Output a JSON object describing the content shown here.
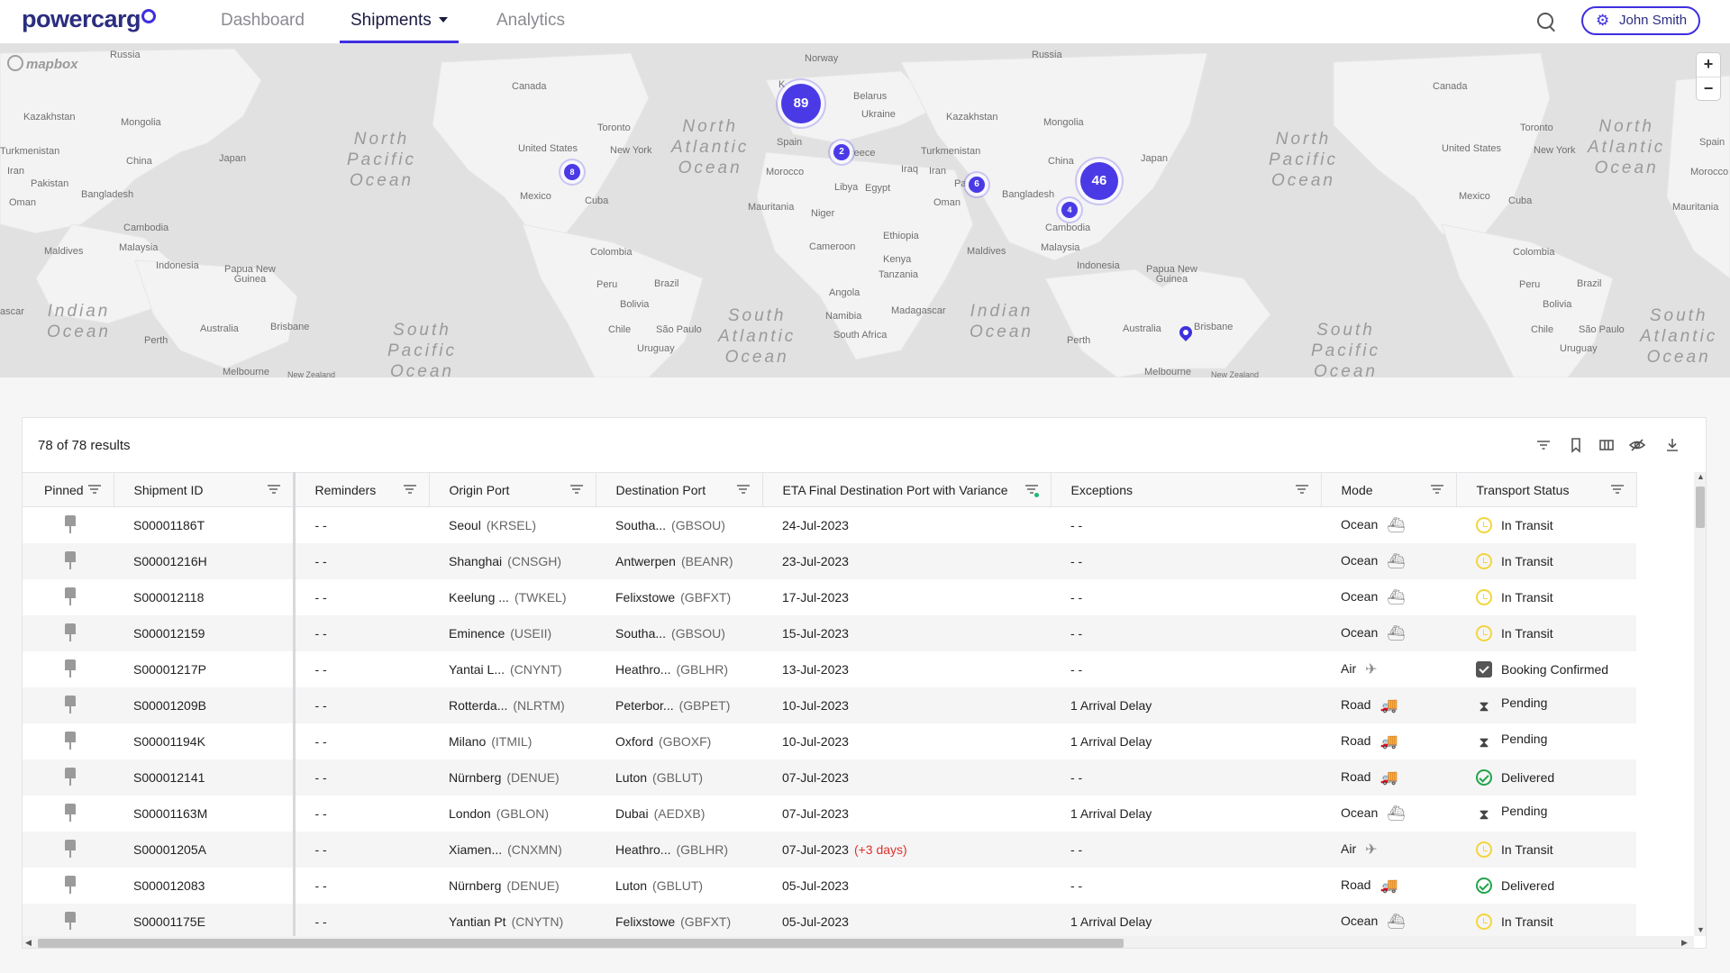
{
  "app": {
    "logo_text": "powercarg",
    "nav": [
      {
        "label": "Dashboard"
      },
      {
        "label": "Shipments"
      },
      {
        "label": "Analytics"
      }
    ],
    "user_name": "John Smith"
  },
  "map": {
    "attribution": "mapbox",
    "zoom_in": "+",
    "zoom_out": "−",
    "labels": {
      "russia1": "Russia",
      "russia2": "Russia",
      "norway": "Norway",
      "canada1": "Canada",
      "canada2": "Canada",
      "kazakhstan1": "Kazakhstan",
      "kazakhstan2": "Kazakhstan",
      "mongolia1": "Mongolia",
      "mongolia2": "Mongolia",
      "turkmenistan1": "Turkmenistan",
      "turkmenistan2": "Turkmenistan",
      "china1": "China",
      "china2": "China",
      "japan1": "Japan",
      "japan2": "Japan",
      "iran1": "Iran",
      "iran2": "Iran",
      "pakistan": "Pakistan",
      "pak2": "Pa",
      "oman1": "Oman",
      "oman2": "Oman",
      "bangladesh1": "Bangladesh",
      "bangladesh2": "Bangladesh",
      "cambodia1": "Cambodia",
      "cambodia2": "Cambodia",
      "maldives1": "Maldives",
      "maldives2": "Maldives",
      "malaysia1": "Malaysia",
      "malaysia2": "Malaysia",
      "indonesia1": "Indonesia",
      "indonesia2": "Indonesia",
      "png1": "Papua New\nGuinea",
      "png2": "Papua New\nGuinea",
      "australia1": "Australia",
      "australia2": "Australia",
      "perth1": "Perth",
      "perth2": "Perth",
      "brisbane1": "Brisbane",
      "brisbane2": "Brisbane",
      "melbourne1": "Melbourne",
      "melbourne2": "Melbourne",
      "nz1": "New Zealand",
      "nz2": "New Zealand",
      "us1": "United States",
      "us2": "United States",
      "toronto1": "Toronto",
      "toronto2": "Toronto",
      "ny1": "New York",
      "ny2": "New York",
      "mexico1": "Mexico",
      "mexico2": "Mexico",
      "cuba1": "Cuba",
      "cuba2": "Cuba",
      "colombia1": "Colombia",
      "colombia2": "Colombia",
      "peru1": "Peru",
      "peru2": "Peru",
      "brazil1": "Brazil",
      "brazil2": "Brazil",
      "bolivia1": "Bolivia",
      "bolivia2": "Bolivia",
      "chile1": "Chile",
      "chile2": "Chile",
      "saopaulo1": "São Paulo",
      "saopaulo2": "São Paulo",
      "uruguay1": "Uruguay",
      "uruguay2": "Uruguay",
      "belarus": "Belarus",
      "ukraine": "Ukraine",
      "spain1": "Spain",
      "spain2": "Spain",
      "greece": "reece",
      "morocco1": "Morocco",
      "morocco2": "Morocco",
      "libya": "Libya",
      "egypt": "Egypt",
      "iraq": "Iraq",
      "mauritania1": "Mauritania",
      "mauritania2": "Mauritania",
      "niger": "Niger",
      "ethiopia": "Ethiopia",
      "cameroon": "Cameroon",
      "kenya": "Kenya",
      "tanzania": "Tanzania",
      "angola": "Angola",
      "namibia": "Namibia",
      "madagascar": "Madagascar",
      "southafrica": "South Africa",
      "uk": "K",
      "oscar": "ascar"
    },
    "oceans": {
      "np1": "North\nPacific\nOcean",
      "na1": "North\nAtlantic\nOcean",
      "np2": "North\nPacific\nOcean",
      "na2": "North\nAtlantic\nOcean",
      "io1": "Indian\nOcean",
      "sp1": "South\nPacific\nOcean",
      "sa1": "South\nAtlantic\nOcean",
      "io2": "Indian\nOcean",
      "sp2": "South\nPacific\nOcean",
      "sa2": "South\nAtlantic\nOcean"
    },
    "clusters": [
      {
        "count": "89"
      },
      {
        "count": "46"
      },
      {
        "count": "8"
      },
      {
        "count": "2"
      },
      {
        "count": "6"
      },
      {
        "count": "4"
      }
    ]
  },
  "table": {
    "results_text": "78 of 78 results",
    "toolbar_icons": [
      "filter-icon",
      "bookmark-icon",
      "columns-icon",
      "hide-icon",
      "download-icon"
    ],
    "columns": [
      "Pinned",
      "Shipment ID",
      "Reminders",
      "Origin Port",
      "Destination Port",
      "ETA Final Destination Port with Variance",
      "Exceptions",
      "Mode",
      "Transport Status"
    ],
    "rows": [
      {
        "id": "S00001186T",
        "reminders": "- -",
        "origin": "Seoul",
        "origin_code": "(KRSEL)",
        "dest": "Southa...",
        "dest_code": "(GBSOU)",
        "eta": "24-Jul-2023",
        "variance": "",
        "exceptions": "- -",
        "mode": "Ocean",
        "mode_icon": "ship-icon",
        "status": "In Transit",
        "status_icon": "transit"
      },
      {
        "id": "S00001216H",
        "reminders": "- -",
        "origin": "Shanghai",
        "origin_code": "(CNSGH)",
        "dest": "Antwerpen",
        "dest_code": "(BEANR)",
        "eta": "23-Jul-2023",
        "variance": "",
        "exceptions": "- -",
        "mode": "Ocean",
        "mode_icon": "ship-icon",
        "status": "In Transit",
        "status_icon": "transit"
      },
      {
        "id": "S000012118",
        "reminders": "- -",
        "origin": "Keelung ...",
        "origin_code": "(TWKEL)",
        "dest": "Felixstowe",
        "dest_code": "(GBFXT)",
        "eta": "17-Jul-2023",
        "variance": "",
        "exceptions": "- -",
        "mode": "Ocean",
        "mode_icon": "ship-icon",
        "status": "In Transit",
        "status_icon": "transit"
      },
      {
        "id": "S000012159",
        "reminders": "- -",
        "origin": "Eminence",
        "origin_code": "(USEII)",
        "dest": "Southa...",
        "dest_code": "(GBSOU)",
        "eta": "15-Jul-2023",
        "variance": "",
        "exceptions": "- -",
        "mode": "Ocean",
        "mode_icon": "ship-icon",
        "status": "In Transit",
        "status_icon": "transit"
      },
      {
        "id": "S00001217P",
        "reminders": "- -",
        "origin": "Yantai L...",
        "origin_code": "(CNYNT)",
        "dest": "Heathro...",
        "dest_code": "(GBLHR)",
        "eta": "13-Jul-2023",
        "variance": "",
        "exceptions": "- -",
        "mode": "Air",
        "mode_icon": "plane-icon",
        "status": "Booking Confirmed",
        "status_icon": "booking"
      },
      {
        "id": "S00001209B",
        "reminders": "- -",
        "origin": "Rotterda...",
        "origin_code": "(NLRTM)",
        "dest": "Peterbor...",
        "dest_code": "(GBPET)",
        "eta": "10-Jul-2023",
        "variance": "",
        "exceptions": "1 Arrival Delay",
        "mode": "Road",
        "mode_icon": "truck-icon",
        "status": "Pending",
        "status_icon": "pending"
      },
      {
        "id": "S00001194K",
        "reminders": "- -",
        "origin": "Milano",
        "origin_code": "(ITMIL)",
        "dest": "Oxford",
        "dest_code": "(GBOXF)",
        "eta": "10-Jul-2023",
        "variance": "",
        "exceptions": "1 Arrival Delay",
        "mode": "Road",
        "mode_icon": "truck-icon",
        "status": "Pending",
        "status_icon": "pending"
      },
      {
        "id": "S000012141",
        "reminders": "- -",
        "origin": "Nürnberg",
        "origin_code": "(DENUE)",
        "dest": "Luton",
        "dest_code": "(GBLUT)",
        "eta": "07-Jul-2023",
        "variance": "",
        "exceptions": "- -",
        "mode": "Road",
        "mode_icon": "truck-icon",
        "status": "Delivered",
        "status_icon": "delivered"
      },
      {
        "id": "S00001163M",
        "reminders": "- -",
        "origin": "London",
        "origin_code": "(GBLON)",
        "dest": "Dubai",
        "dest_code": "(AEDXB)",
        "eta": "07-Jul-2023",
        "variance": "",
        "exceptions": "1 Arrival Delay",
        "mode": "Ocean",
        "mode_icon": "ship-icon",
        "status": "Pending",
        "status_icon": "pending"
      },
      {
        "id": "S00001205A",
        "reminders": "- -",
        "origin": "Xiamen...",
        "origin_code": "(CNXMN)",
        "dest": "Heathro...",
        "dest_code": "(GBLHR)",
        "eta": "07-Jul-2023",
        "variance": "(+3 days)",
        "exceptions": "- -",
        "mode": "Air",
        "mode_icon": "plane-icon",
        "status": "In Transit",
        "status_icon": "transit"
      },
      {
        "id": "S000012083",
        "reminders": "- -",
        "origin": "Nürnberg",
        "origin_code": "(DENUE)",
        "dest": "Luton",
        "dest_code": "(GBLUT)",
        "eta": "05-Jul-2023",
        "variance": "",
        "exceptions": "- -",
        "mode": "Road",
        "mode_icon": "truck-icon",
        "status": "Delivered",
        "status_icon": "delivered"
      },
      {
        "id": "S00001175E",
        "reminders": "- -",
        "origin": "Yantian Pt",
        "origin_code": "(CNYTN)",
        "dest": "Felixstowe",
        "dest_code": "(GBFXT)",
        "eta": "05-Jul-2023",
        "variance": "",
        "exceptions": "1 Arrival Delay",
        "mode": "Ocean",
        "mode_icon": "ship-icon",
        "status": "In Transit",
        "status_icon": "transit"
      }
    ]
  }
}
